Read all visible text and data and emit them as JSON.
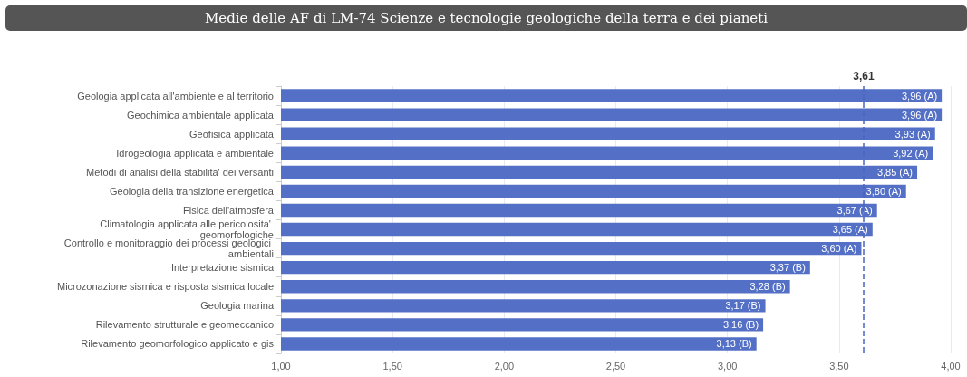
{
  "chart_data": {
    "type": "bar",
    "orientation": "horizontal",
    "title": "Medie delle AF di LM-74 Scienze e tecnologie geologiche della terra e dei pianeti",
    "categories": [
      "Geologia applicata all'ambiente e al territorio",
      "Geochimica ambientale applicata",
      "Geofisica applicata",
      "Idrogeologia applicata e ambientale",
      "Metodi di analisi della stabilita' dei versanti",
      "Geologia della transizione energetica",
      "Fisica dell'atmosfera",
      "Climatologia applicata alle pericolosita' geomorfologiche",
      "Controllo e monitoraggio dei processi geologici ambientali",
      "Interpretazione sismica",
      "Microzonazione sismica e risposta sismica locale",
      "Geologia marina",
      "Rilevamento strutturale e geomeccanico",
      "Rilevamento geomorfologico applicato e gis"
    ],
    "values": [
      3.96,
      3.96,
      3.93,
      3.92,
      3.85,
      3.8,
      3.67,
      3.65,
      3.6,
      3.37,
      3.28,
      3.17,
      3.16,
      3.13
    ],
    "value_labels": [
      "3,96 (A)",
      "3,96 (A)",
      "3,93 (A)",
      "3,92 (A)",
      "3,85 (A)",
      "3,80 (A)",
      "3,67 (A)",
      "3,65 (A)",
      "3,60 (A)",
      "3,37 (B)",
      "3,28 (B)",
      "3,17 (B)",
      "3,16 (B)",
      "3,13 (B)"
    ],
    "color": "#5470c6",
    "xlim": [
      1,
      4
    ],
    "xticks": [
      {
        "value": 1,
        "label": "1,00"
      },
      {
        "value": 1.5,
        "label": "1,50"
      },
      {
        "value": 2,
        "label": "2,00"
      },
      {
        "value": 2.5,
        "label": "2,50"
      },
      {
        "value": 3,
        "label": "3,00"
      },
      {
        "value": 3.5,
        "label": "3,50"
      },
      {
        "value": 4,
        "label": "4,00"
      }
    ],
    "ref_lines": [
      {
        "axis": "x",
        "value": 3.61,
        "label": "3,61",
        "line_style": "dashed",
        "color": "#4a64c0"
      }
    ],
    "grid": "x"
  }
}
